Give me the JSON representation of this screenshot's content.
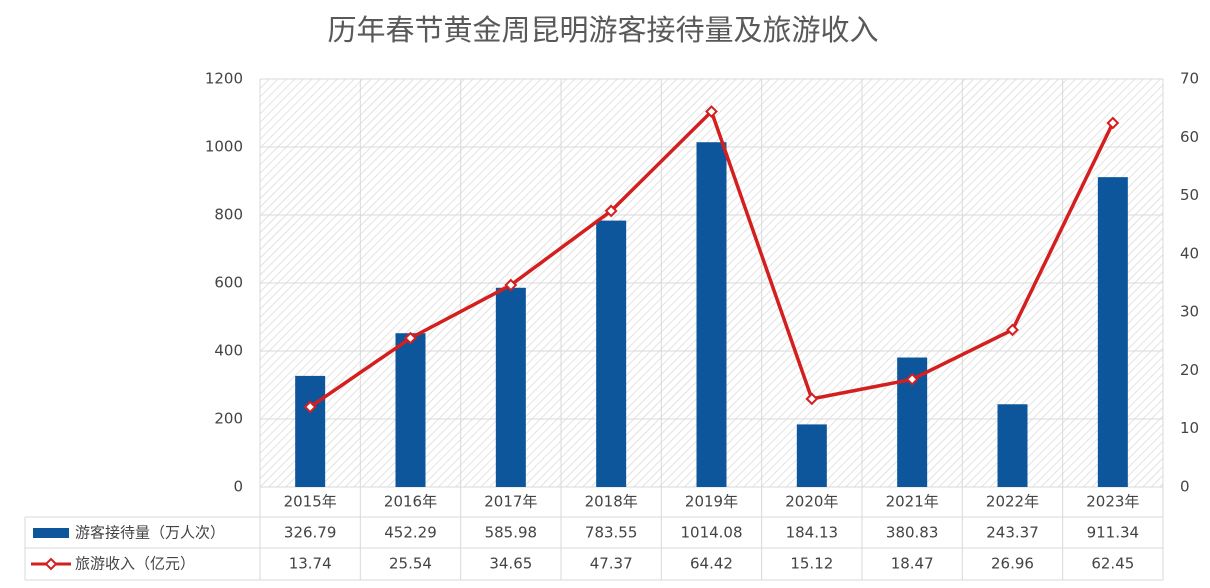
{
  "chart_data": {
    "type": "bar-line",
    "title": "历年春节黄金周昆明游客接待量及旅游收入",
    "categories": [
      "2015年",
      "2016年",
      "2017年",
      "2018年",
      "2019年",
      "2020年",
      "2021年",
      "2022年",
      "2023年"
    ],
    "series": [
      {
        "name": "游客接待量（万人次）",
        "type": "bar",
        "color": "#0e569c",
        "values": [
          326.79,
          452.29,
          585.98,
          783.55,
          1014.08,
          184.13,
          380.83,
          243.37,
          911.34
        ]
      },
      {
        "name": "旅游收入（亿元）",
        "type": "line",
        "axis": "y2",
        "color": "#d41f1f",
        "values": [
          13.74,
          25.54,
          34.65,
          47.37,
          64.42,
          15.12,
          18.47,
          26.96,
          62.45
        ]
      }
    ],
    "ylim": [
      0,
      1200
    ],
    "yticks": [
      0,
      200,
      400,
      600,
      800,
      1000,
      1200
    ],
    "y2lim": [
      0,
      70
    ],
    "y2ticks": [
      0,
      10,
      20,
      30,
      40,
      50,
      60,
      70
    ],
    "grid": true,
    "data_table": true
  }
}
